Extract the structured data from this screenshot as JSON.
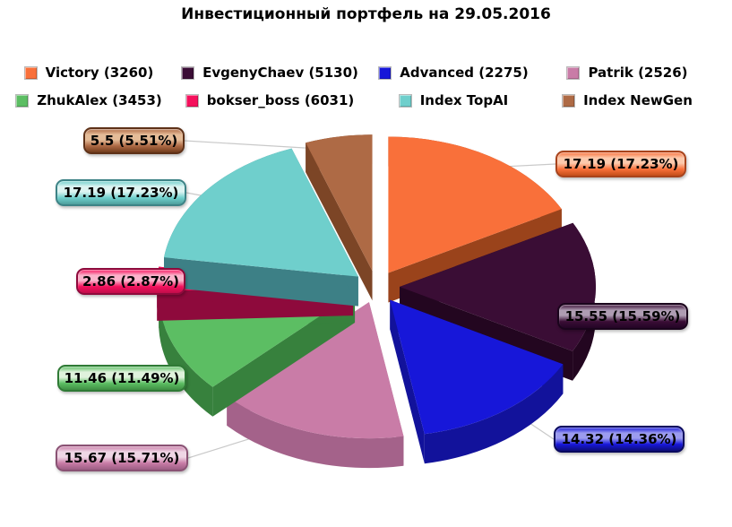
{
  "title": "Инвестиционный портфель на 29.05.2016",
  "chart_data": {
    "type": "pie",
    "title": "Инвестиционный портфель на 29.05.2016",
    "legend_position": "top",
    "style": "3d-exploded-pie",
    "start_angle_deg": 0,
    "direction": "clockwise",
    "slices": [
      {
        "name": "Victory (3260)",
        "value": 17.19,
        "pct": 17.23,
        "label": "17.19 (17.23%)",
        "color": "#F9703A",
        "side": "#9A431B",
        "label_light": "#FCC9AC",
        "label_dark": "#C34E19",
        "border": "#A8431C"
      },
      {
        "name": "EvgenyChaev (5130)",
        "value": 15.55,
        "pct": 15.59,
        "label": "15.55 (15.59%)",
        "color": "#3A0D35",
        "side": "#230620",
        "label_light": "#AE9CB2",
        "label_dark": "#230526",
        "border": "#1A041C"
      },
      {
        "name": "Advanced (2275)",
        "value": 14.32,
        "pct": 14.36,
        "label": "14.32 (14.36%)",
        "color": "#1717D9",
        "side": "#12129B",
        "label_light": "#9B9BEF",
        "label_dark": "#0D0D77",
        "border": "#09095E"
      },
      {
        "name": "Patrik (2526)",
        "value": 15.67,
        "pct": 15.71,
        "label": "15.67 (15.71%)",
        "color": "#C97CA7",
        "side": "#A4628A",
        "label_light": "#EFD6E5",
        "label_dark": "#9C5E84",
        "border": "#8A5274"
      },
      {
        "name": "ZhukAlex (3453)",
        "value": 11.46,
        "pct": 11.49,
        "label": "11.46 (11.49%)",
        "color": "#5CBE63",
        "side": "#37813D",
        "label_light": "#DFF2DC",
        "label_dark": "#3F8F43",
        "border": "#2F7A35"
      },
      {
        "name": "bokser_boss (6031)",
        "value": 2.86,
        "pct": 2.87,
        "label": "2.86 (2.87%)",
        "color": "#F5105C",
        "side": "#8E0A3C",
        "label_light": "#FBB3CB",
        "label_dark": "#C00D4A",
        "border": "#8E0A3C"
      },
      {
        "name": "Index TopAI",
        "value": 17.19,
        "pct": 17.23,
        "label": "17.19 (17.23%)",
        "color": "#6FCFCC",
        "side": "#3D8086",
        "label_light": "#DDF4F2",
        "label_dark": "#4E9E9C",
        "border": "#3D8386"
      },
      {
        "name": "Index NewGen",
        "value": 5.5,
        "pct": 5.51,
        "label": "5.5 (5.51%)",
        "color": "#AE6A45",
        "side": "#7C4526",
        "label_light": "#E5BC98",
        "label_dark": "#703B1C",
        "border": "#5E3118"
      }
    ],
    "leader_line_color": "#C9C9C9"
  }
}
